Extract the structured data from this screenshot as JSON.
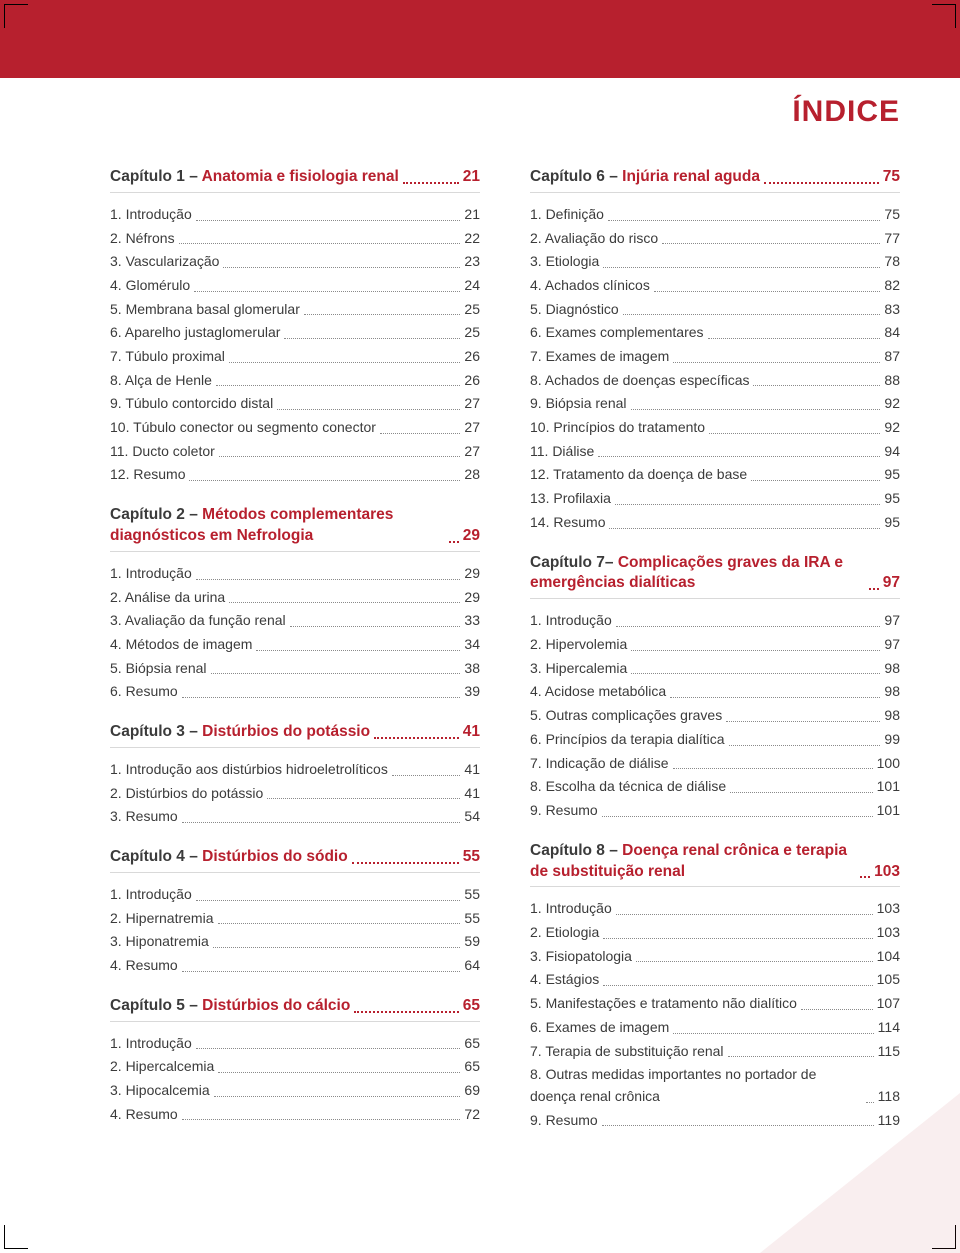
{
  "colors": {
    "accent": "#b7202e",
    "text": "#3b3b3b",
    "rule": "#d9d9d9",
    "dots": "#8a8a8a",
    "wedge": "rgba(183,32,46,0.08)"
  },
  "title": "ÍNDICE",
  "columns": [
    [
      {
        "prefix": "Capítulo 1 – ",
        "name": "Anatomia e fisiologia renal",
        "page": "21",
        "items": [
          {
            "label": "1. Introdução",
            "page": "21"
          },
          {
            "label": "2. Néfrons",
            "page": "22"
          },
          {
            "label": "3. Vascularização",
            "page": "23"
          },
          {
            "label": "4. Glomérulo",
            "page": "24"
          },
          {
            "label": "5. Membrana basal glomerular",
            "page": "25"
          },
          {
            "label": "6. Aparelho justaglomerular",
            "page": "25"
          },
          {
            "label": "7. Túbulo proximal",
            "page": "26"
          },
          {
            "label": "8. Alça de Henle",
            "page": "26"
          },
          {
            "label": "9. Túbulo contorcido distal",
            "page": "27"
          },
          {
            "label": "10. Túbulo conector ou segmento conector",
            "page": "27"
          },
          {
            "label": "11. Ducto coletor",
            "page": "27"
          },
          {
            "label": "12. Resumo",
            "page": "28"
          }
        ]
      },
      {
        "prefix": "Capítulo 2 – ",
        "name": "Métodos complementares diagnósticos em Nefrologia",
        "page": "29",
        "items": [
          {
            "label": "1. Introdução",
            "page": "29"
          },
          {
            "label": "2. Análise da urina",
            "page": "29"
          },
          {
            "label": "3. Avaliação da função renal",
            "page": "33"
          },
          {
            "label": "4. Métodos de imagem",
            "page": "34"
          },
          {
            "label": "5. Biópsia renal",
            "page": "38"
          },
          {
            "label": "6. Resumo",
            "page": "39"
          }
        ]
      },
      {
        "prefix": "Capítulo 3 – ",
        "name": "Distúrbios do potássio",
        "page": "41",
        "items": [
          {
            "label": "1. Introdução aos distúrbios hidroeletrolíticos",
            "page": "41"
          },
          {
            "label": "2. Distúrbios do potássio",
            "page": "41"
          },
          {
            "label": "3. Resumo",
            "page": "54"
          }
        ]
      },
      {
        "prefix": "Capítulo 4 – ",
        "name": "Distúrbios do sódio",
        "page": "55",
        "items": [
          {
            "label": "1. Introdução",
            "page": "55"
          },
          {
            "label": "2. Hipernatremia",
            "page": "55"
          },
          {
            "label": "3. Hiponatremia",
            "page": "59"
          },
          {
            "label": "4. Resumo",
            "page": "64"
          }
        ]
      },
      {
        "prefix": "Capítulo 5 – ",
        "name": "Distúrbios do cálcio",
        "page": "65",
        "items": [
          {
            "label": "1. Introdução",
            "page": "65"
          },
          {
            "label": "2. Hipercalcemia",
            "page": "65"
          },
          {
            "label": "3. Hipocalcemia",
            "page": "69"
          },
          {
            "label": "4. Resumo",
            "page": "72"
          }
        ]
      }
    ],
    [
      {
        "prefix": "Capítulo 6 – ",
        "name": "Injúria renal aguda",
        "page": "75",
        "items": [
          {
            "label": "1. Definição",
            "page": "75"
          },
          {
            "label": "2. Avaliação do risco",
            "page": "77"
          },
          {
            "label": "3. Etiologia",
            "page": "78"
          },
          {
            "label": "4. Achados clínicos",
            "page": "82"
          },
          {
            "label": "5. Diagnóstico",
            "page": "83"
          },
          {
            "label": "6. Exames complementares",
            "page": "84"
          },
          {
            "label": "7. Exames de imagem",
            "page": "87"
          },
          {
            "label": "8. Achados de doenças específicas",
            "page": "88"
          },
          {
            "label": "9. Biópsia renal",
            "page": "92"
          },
          {
            "label": "10. Princípios do tratamento",
            "page": "92"
          },
          {
            "label": "11. Diálise",
            "page": "94"
          },
          {
            "label": "12. Tratamento da doença de base",
            "page": "95"
          },
          {
            "label": "13. Profilaxia",
            "page": "95"
          },
          {
            "label": "14. Resumo",
            "page": "95"
          }
        ]
      },
      {
        "prefix": "Capítulo 7– ",
        "name": "Complicações graves da IRA e emergências dialíticas",
        "page": "97",
        "items": [
          {
            "label": "1. Introdução",
            "page": "97"
          },
          {
            "label": "2. Hipervolemia",
            "page": "97"
          },
          {
            "label": "3. Hipercalemia",
            "page": "98"
          },
          {
            "label": "4. Acidose metabólica",
            "page": "98"
          },
          {
            "label": "5. Outras complicações graves",
            "page": "98"
          },
          {
            "label": "6. Princípios da terapia dialítica",
            "page": "99"
          },
          {
            "label": "7. Indicação de diálise",
            "page": "100"
          },
          {
            "label": "8. Escolha da técnica de diálise",
            "page": "101"
          },
          {
            "label": "9. Resumo",
            "page": "101"
          }
        ]
      },
      {
        "prefix": "Capítulo 8 – ",
        "name": "Doença renal crônica e terapia de substituição renal",
        "page": "103",
        "items": [
          {
            "label": "1. Introdução",
            "page": "103"
          },
          {
            "label": "2. Etiologia",
            "page": "103"
          },
          {
            "label": "3. Fisiopatologia",
            "page": "104"
          },
          {
            "label": "4. Estágios",
            "page": "105"
          },
          {
            "label": "5. Manifestações e tratamento não dialítico",
            "page": "107"
          },
          {
            "label": "6. Exames de imagem",
            "page": "114"
          },
          {
            "label": "7. Terapia de substituição renal",
            "page": "115"
          },
          {
            "label": "8. Outras medidas importantes no portador de doença renal crônica",
            "page": "118"
          },
          {
            "label": "9. Resumo",
            "page": "119"
          }
        ]
      }
    ]
  ]
}
